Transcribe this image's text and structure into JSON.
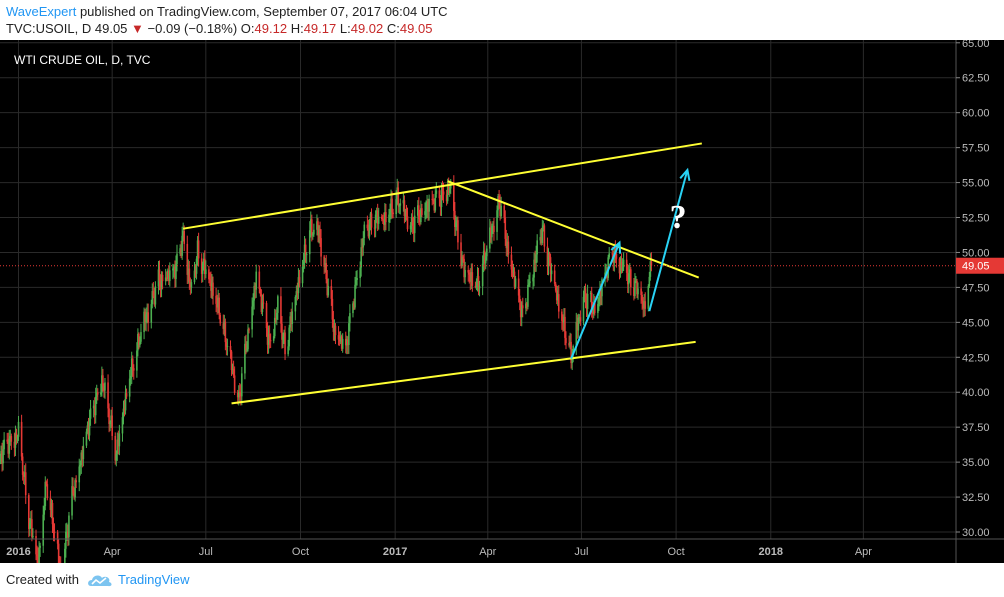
{
  "header": {
    "author": "WaveExpert",
    "published": "published on TradingView.com, September 07, 2017 06:04 UTC",
    "symbol": "TVC:USOIL, D",
    "last": "49.05",
    "change": "−0.09 (−0.18%)",
    "ohlc": [
      {
        "label": "O:",
        "value": "49.12"
      },
      {
        "label": "H:",
        "value": "49.17"
      },
      {
        "label": "L:",
        "value": "49.02"
      },
      {
        "label": "C:",
        "value": "49.05"
      }
    ]
  },
  "footer": {
    "created": "Created with",
    "brand": "TradingView"
  },
  "colors": {
    "up": "#4caf50",
    "down": "#e53935",
    "trend": "#ffff33",
    "arrow": "#29d3f5",
    "price_line": "#e53935",
    "grid": "#2a2a2a"
  },
  "chart_data": {
    "type": "candlestick",
    "title": "WTI CRUDE OIL, D, TVC",
    "last_price": 49.05,
    "ylim": [
      29.5,
      65.2
    ],
    "y_ticks": [
      "65.00",
      "62.50",
      "60.00",
      "57.50",
      "55.00",
      "52.50",
      "50.00",
      "47.50",
      "45.00",
      "42.50",
      "40.00",
      "37.50",
      "35.00",
      "32.50",
      "30.00"
    ],
    "x_range": [
      "2015-12-14",
      "2018-06-30"
    ],
    "x_ticks": [
      {
        "date": "2016-01-01",
        "label": "2016"
      },
      {
        "date": "2016-04-01",
        "label": "Apr"
      },
      {
        "date": "2016-07-01",
        "label": "Jul"
      },
      {
        "date": "2016-10-01",
        "label": "Oct"
      },
      {
        "date": "2017-01-01",
        "label": "2017"
      },
      {
        "date": "2017-04-01",
        "label": "Apr"
      },
      {
        "date": "2017-07-01",
        "label": "Jul"
      },
      {
        "date": "2017-10-01",
        "label": "Oct"
      },
      {
        "date": "2018-01-01",
        "label": "2018"
      },
      {
        "date": "2018-04-01",
        "label": "Apr"
      }
    ],
    "price_path": [
      [
        "2015-12-14",
        35.5
      ],
      [
        "2015-12-22",
        36.5
      ],
      [
        "2016-01-01",
        37.0
      ],
      [
        "2016-01-11",
        31.0
      ],
      [
        "2016-01-20",
        27.5
      ],
      [
        "2016-01-28",
        33.5
      ],
      [
        "2016-02-11",
        27.0
      ],
      [
        "2016-02-22",
        32.5
      ],
      [
        "2016-03-08",
        37.5
      ],
      [
        "2016-03-22",
        41.0
      ],
      [
        "2016-04-05",
        35.5
      ],
      [
        "2016-04-18",
        41.0
      ],
      [
        "2016-05-02",
        45.0
      ],
      [
        "2016-05-16",
        48.0
      ],
      [
        "2016-06-02",
        49.0
      ],
      [
        "2016-06-09",
        51.3
      ],
      [
        "2016-06-17",
        47.0
      ],
      [
        "2016-06-23",
        50.0
      ],
      [
        "2016-07-01",
        48.5
      ],
      [
        "2016-07-15",
        45.5
      ],
      [
        "2016-08-02",
        39.5
      ],
      [
        "2016-08-19",
        48.5
      ],
      [
        "2016-09-01",
        43.5
      ],
      [
        "2016-09-09",
        46.0
      ],
      [
        "2016-09-16",
        43.0
      ],
      [
        "2016-10-10",
        51.5
      ],
      [
        "2016-10-19",
        51.5
      ],
      [
        "2016-11-03",
        44.5
      ],
      [
        "2016-11-14",
        43.3
      ],
      [
        "2016-12-01",
        51.0
      ],
      [
        "2016-12-12",
        52.5
      ],
      [
        "2016-12-20",
        52.0
      ],
      [
        "2017-01-03",
        53.8
      ],
      [
        "2017-01-17",
        52.0
      ],
      [
        "2017-02-01",
        53.5
      ],
      [
        "2017-02-23",
        54.5
      ],
      [
        "2017-03-09",
        48.5
      ],
      [
        "2017-03-22",
        47.5
      ],
      [
        "2017-04-12",
        53.8
      ],
      [
        "2017-04-20",
        50.5
      ],
      [
        "2017-05-05",
        45.5
      ],
      [
        "2017-05-12",
        48.0
      ],
      [
        "2017-05-24",
        51.5
      ],
      [
        "2017-06-06",
        47.0
      ],
      [
        "2017-06-21",
        42.5
      ],
      [
        "2017-07-03",
        47.0
      ],
      [
        "2017-07-14",
        46.0
      ],
      [
        "2017-07-31",
        50.2
      ],
      [
        "2017-08-08",
        49.0
      ],
      [
        "2017-08-24",
        47.3
      ],
      [
        "2017-08-31",
        45.9
      ],
      [
        "2017-09-07",
        49.05
      ]
    ],
    "drawings": [
      {
        "kind": "trendline",
        "color": "trend",
        "from": [
          "2016-06-09",
          51.7
        ],
        "to": [
          "2017-10-26",
          57.8
        ]
      },
      {
        "kind": "trendline",
        "color": "trend",
        "from": [
          "2016-07-26",
          39.2
        ],
        "to": [
          "2017-10-20",
          43.6
        ]
      },
      {
        "kind": "trendline",
        "color": "trend",
        "from": [
          "2017-02-21",
          55.1
        ],
        "to": [
          "2017-10-23",
          48.2
        ]
      },
      {
        "kind": "arrow",
        "color": "arrow",
        "from": [
          "2017-06-21",
          42.4
        ],
        "to": [
          "2017-08-07",
          50.7
        ]
      },
      {
        "kind": "arrow",
        "color": "arrow",
        "from": [
          "2017-09-05",
          45.8
        ],
        "to": [
          "2017-10-12",
          55.9
        ]
      }
    ],
    "annotation": {
      "text": "?",
      "at": [
        "2017-10-03",
        52.6
      ]
    }
  }
}
